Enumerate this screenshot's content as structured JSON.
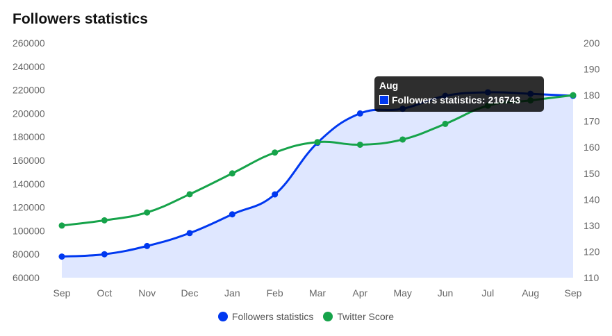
{
  "title": "Followers statistics",
  "colors": {
    "followers": "#0038f0",
    "twitter": "#16a34a",
    "fill": "#dbe4ff",
    "tick": "#666666"
  },
  "chart_data": {
    "type": "line",
    "categories": [
      "Sep",
      "Oct",
      "Nov",
      "Dec",
      "Jan",
      "Feb",
      "Mar",
      "Apr",
      "May",
      "Jun",
      "Jul",
      "Aug",
      "Sep"
    ],
    "series": [
      {
        "name": "Followers statistics",
        "axis": "left",
        "fill": true,
        "values": [
          78000,
          80000,
          87000,
          98000,
          114000,
          131000,
          175000,
          200000,
          204000,
          215000,
          218000,
          216743,
          215000
        ]
      },
      {
        "name": "Twitter Score",
        "axis": "right",
        "fill": false,
        "values": [
          130,
          132,
          135,
          142,
          150,
          158,
          162,
          161,
          163,
          169,
          176,
          178,
          180
        ]
      }
    ],
    "y_left": {
      "min": 60000,
      "max": 260000,
      "step": 20000
    },
    "y_right": {
      "min": 110,
      "max": 200,
      "step": 10
    },
    "legend": [
      "Followers statistics",
      "Twitter Score"
    ]
  },
  "tooltip": {
    "title": "Aug",
    "label": "Followers statistics: 216743"
  }
}
